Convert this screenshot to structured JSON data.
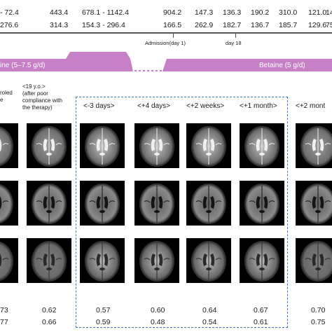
{
  "lab_values": {
    "row1": [
      "- 72.4",
      "443.4",
      "678.1 - 1142.4",
      "904.2",
      "147.3",
      "136.3",
      "190.2",
      "310.0",
      "121.0",
      "14"
    ],
    "row2": [
      "276.6",
      "314.3",
      "154.3 - 296.4",
      "166.5",
      "262.9",
      "182.7",
      "136.7",
      "185.7",
      "129.6",
      "75"
    ]
  },
  "timeline": {
    "admission_label": "Admission(day 1)",
    "day18_label": "day 18",
    "therapy_left": "ine (5–7.5 g/d)",
    "therapy_right": "Betaine (5 g/d)"
  },
  "columns": {
    "c0_label": [
      "roled",
      "e"
    ],
    "c1_label": [
      "<19 y.o.>",
      "(after poor",
      "compliance with",
      "the therapy)"
    ],
    "c2_label": "<-3 days>",
    "c3_label": "<+4 days>",
    "c4_label": "<+2 weeks>",
    "c5_label": "<+1 month>",
    "c6_label": "<+2 mont"
  },
  "ratios": {
    "row1": [
      "73",
      "0.62",
      "0.57",
      "0.60",
      "0.64",
      "0.67",
      "0.70"
    ],
    "row2": [
      "77",
      "0.66",
      "0.59",
      "0.48",
      "0.54",
      "0.61",
      "0.75"
    ]
  },
  "colors": {
    "therapy_band": "#c77fc7",
    "dashed_box": "#3a78c9",
    "axis": "#555555"
  }
}
